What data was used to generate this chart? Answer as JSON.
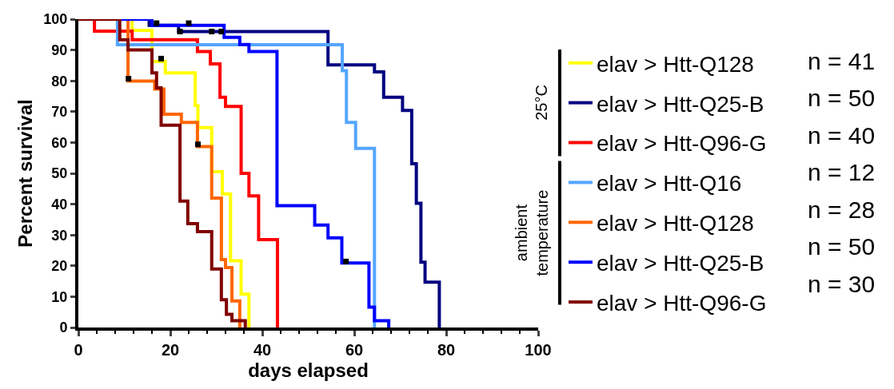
{
  "chart_data": {
    "type": "step",
    "xlabel": "days elapsed",
    "ylabel": "Percent survival",
    "xlim": [
      0,
      100
    ],
    "ylim": [
      0,
      100
    ],
    "xticks": [
      0,
      {
        "value": 4,
        "label": null
      },
      {
        "value": 8,
        "label": null
      },
      {
        "value": 12,
        "label": null
      },
      {
        "value": 16,
        "label": null
      },
      20,
      {
        "value": 24,
        "label": null
      },
      {
        "value": 28,
        "label": null
      },
      {
        "value": 32,
        "label": null
      },
      {
        "value": 36,
        "label": null
      },
      40,
      {
        "value": 44,
        "label": null
      },
      {
        "value": 48,
        "label": null
      },
      {
        "value": 52,
        "label": null
      },
      {
        "value": 56,
        "label": null
      },
      60,
      {
        "value": 64,
        "label": null
      },
      {
        "value": 68,
        "label": null
      },
      {
        "value": 72,
        "label": null
      },
      {
        "value": 76,
        "label": null
      },
      80,
      {
        "value": 84,
        "label": null
      },
      {
        "value": 88,
        "label": null
      },
      {
        "value": 92,
        "label": null
      },
      {
        "value": 96,
        "label": null
      },
      100
    ],
    "yticks": [
      0,
      10,
      20,
      30,
      40,
      50,
      60,
      70,
      80,
      90,
      100
    ],
    "legend": "right",
    "series": [
      {
        "name": "elav > Htt-Q128",
        "color": "#ffff00",
        "x": [
          0,
          11.7,
          16,
          18.9,
          25.4,
          26,
          29,
          31.3,
          33.1,
          35.4,
          37.1
        ],
        "values": [
          100,
          96.4,
          86.3,
          82.6,
          72,
          64.8,
          50.5,
          43.3,
          21.6,
          10.8,
          0
        ]
      },
      {
        "name": "elav > Htt-Q25-B",
        "color": "#000080",
        "x": [
          0,
          15.4,
          21.8,
          54.3,
          64.4,
          66.4,
          70.5,
          72.5,
          73.5,
          74.5,
          75.4,
          78.5
        ],
        "values": [
          100,
          98,
          96,
          85.2,
          82.9,
          74.7,
          70.4,
          53.1,
          40.3,
          21.2,
          14.7,
          0
        ]
      },
      {
        "name": "elav > Htt-Q96-G",
        "color": "#ff0000",
        "x": [
          0,
          3.5,
          11.7,
          25.9,
          28.7,
          30.8,
          32,
          35.4,
          37.1,
          39.2,
          43.3
        ],
        "values": [
          100,
          96.1,
          93.3,
          89.5,
          85.5,
          74.7,
          71.7,
          50,
          42.7,
          28.5,
          0
        ]
      },
      {
        "name": "elav > Htt-Q16",
        "color": "#55a5ff",
        "x": [
          0,
          8.5,
          57.4,
          58.3,
          60.3,
          64.4
        ],
        "values": [
          100,
          91.7,
          83.3,
          66.5,
          58.1,
          0
        ]
      },
      {
        "name": "elav > Htt-Q128",
        "color": "#ff6600",
        "x": [
          0,
          10.8,
          16.6,
          18.6,
          22.4,
          25.9,
          29,
          31.1,
          32,
          33.4,
          35.1
        ],
        "values": [
          100,
          79.9,
          77.3,
          69.2,
          66.5,
          58.7,
          42,
          22,
          19.4,
          8.6,
          0
        ]
      },
      {
        "name": "elav > Htt-Q25-B",
        "color": "#0000ff",
        "x": [
          0,
          16,
          31.7,
          35.1,
          37.1,
          43.2,
          51.4,
          54.3,
          57.3,
          63.2,
          64.4,
          67.5
        ],
        "values": [
          100,
          98,
          94.1,
          91.8,
          89.5,
          39.5,
          33.2,
          29.1,
          20.9,
          6.6,
          2.2,
          0
        ]
      },
      {
        "name": "elav > Htt-Q96-G",
        "color": "#800000",
        "x": [
          0,
          9,
          10.8,
          16,
          17,
          18,
          22.1,
          23.8,
          25.9,
          29,
          31.1,
          32.2,
          33.4,
          36.3
        ],
        "values": [
          100,
          93.3,
          90,
          82.6,
          77.7,
          65.6,
          41,
          33.7,
          31.1,
          19,
          9,
          4.3,
          2.2,
          0
        ]
      },
      {
        "type": "scatter",
        "color": "#000000",
        "marker": "square",
        "x": [
          17,
          24,
          22.1,
          29,
          31.1,
          10.9,
          18,
          26,
          58.2
        ],
        "values": [
          98.7,
          98.7,
          96,
          96,
          96,
          80.7,
          87.2,
          59.4,
          21.4
        ]
      }
    ],
    "annotations": [
      "25°C",
      "ambient temperature",
      "n = 41",
      "n = 50",
      "n = 40",
      "n = 12",
      "n = 28",
      "n = 50",
      "n = 30"
    ]
  }
}
